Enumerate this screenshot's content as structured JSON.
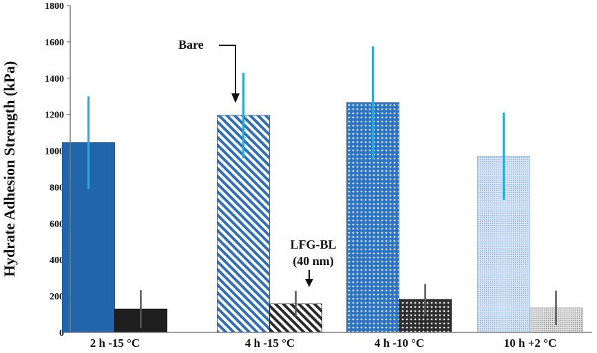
{
  "chart_data": {
    "type": "bar",
    "title": "",
    "xlabel": "",
    "ylabel": "Hydrate Adhesion Strength (kPa)",
    "ylim": [
      0,
      1800
    ],
    "yticks": [
      0,
      200,
      400,
      600,
      800,
      1000,
      1200,
      1400,
      1600,
      1800
    ],
    "grid": false,
    "categories": [
      "2 h -15 °C",
      "4 h -15 °C",
      "4 h -10 °C",
      "10 h +2 °C"
    ],
    "series": [
      {
        "values": [
          1045,
          1195,
          1265,
          970
        ],
        "errors": [
          255,
          235,
          310,
          240
        ],
        "error_color": "#29a8e0",
        "colors": [
          "#2166ac",
          "#2f6fba",
          "#2f74c0",
          "#a9c8ea"
        ],
        "patterns": [
          "solid",
          "diagonal-stripes",
          "crosshatch",
          "dots"
        ]
      },
      {
        "values": [
          128,
          157,
          182,
          135
        ],
        "errors": [
          105,
          70,
          85,
          95
        ],
        "error_color": "#555555",
        "colors": [
          "#1e1e1e",
          "#2a2a2a",
          "#2e2e2e",
          "#a8a8a8"
        ],
        "patterns": [
          "solid",
          "diagonal-stripes",
          "crosshatch",
          "dots"
        ]
      }
    ],
    "annotations": [
      {
        "text": "Bare",
        "lines": [
          "Bare"
        ],
        "series": 0,
        "category": 1
      },
      {
        "text": "LFG-BL (40 nm)",
        "lines": [
          "LFG-BL",
          "(40 nm)"
        ],
        "series": 1,
        "category": 1
      }
    ]
  }
}
